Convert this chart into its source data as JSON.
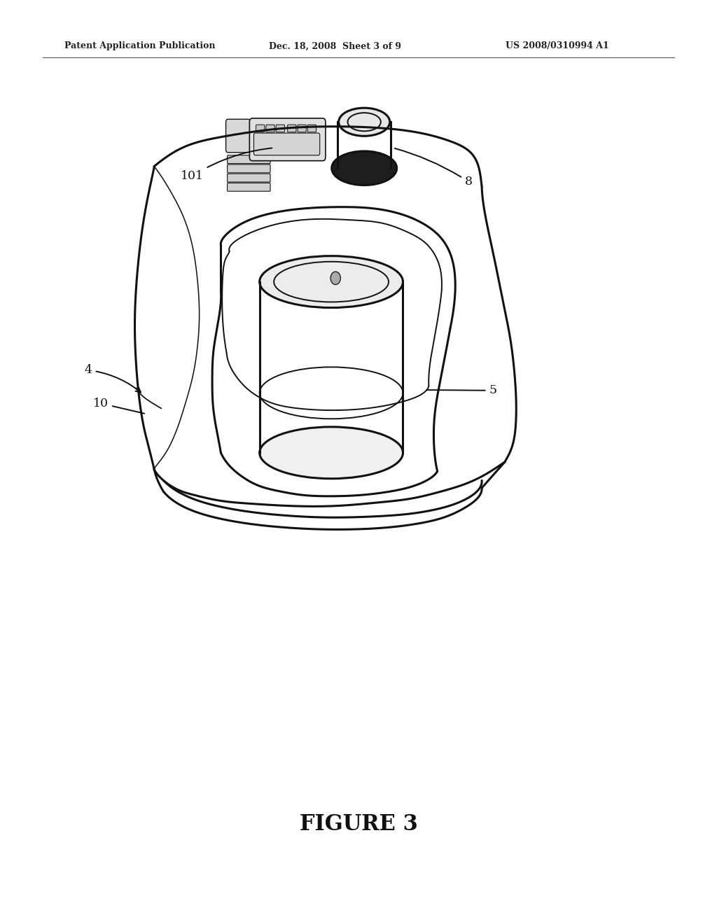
{
  "background_color": "#ffffff",
  "header_left": "Patent Application Publication",
  "header_mid": "Dec. 18, 2008  Sheet 3 of 9",
  "header_right": "US 2008/0310994 A1",
  "figure_label": "FIGURE 3",
  "line_color": "#111111",
  "line_width": 2.2,
  "thin_lw": 1.4
}
